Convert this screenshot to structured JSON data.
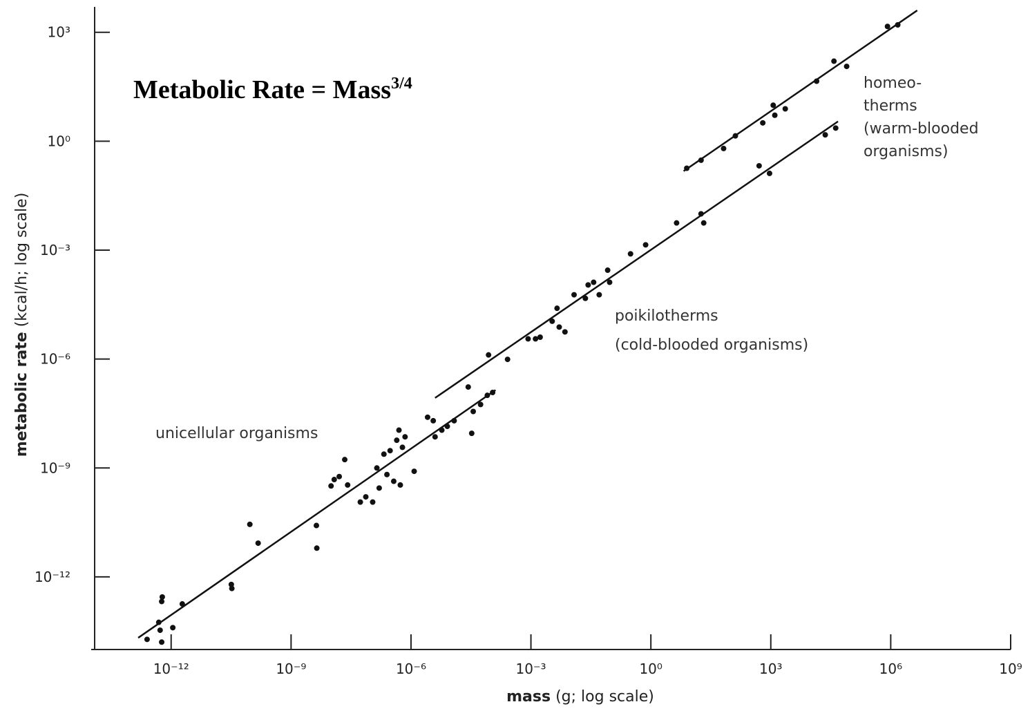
{
  "chart_data": {
    "type": "scatter",
    "title": "Metabolic Rate = Mass",
    "title_exponent": "3/4",
    "xlabel": "mass",
    "xlabel_unit": "(g; log scale)",
    "ylabel": "metabolic rate",
    "ylabel_unit": "(kcal/h; log scale)",
    "xscale": "log",
    "yscale": "log",
    "xlim": [
      1e-14,
      1000000000.0
    ],
    "ylim": [
      1e-14,
      5000.0
    ],
    "xticks": [
      {
        "value": 1e-12,
        "label": "10⁻¹²"
      },
      {
        "value": 1e-09,
        "label": "10⁻⁹"
      },
      {
        "value": 1e-06,
        "label": "10⁻⁶"
      },
      {
        "value": 0.001,
        "label": "10⁻³"
      },
      {
        "value": 1,
        "label": "10⁰"
      },
      {
        "value": 1000.0,
        "label": "10³"
      },
      {
        "value": 1000000.0,
        "label": "10⁶"
      },
      {
        "value": 1000000000.0,
        "label": "10⁹"
      }
    ],
    "yticks": [
      {
        "value": 1e-12,
        "label": "10⁻¹²"
      },
      {
        "value": 1e-09,
        "label": "10⁻⁹"
      },
      {
        "value": 1e-06,
        "label": "10⁻⁶"
      },
      {
        "value": 0.001,
        "label": "10⁻³"
      },
      {
        "value": 1,
        "label": "10⁰"
      },
      {
        "value": 1000.0,
        "label": "10³"
      }
    ],
    "series": [
      {
        "color": "#111111",
        "x": [
          2.5e-13,
          5.8e-13,
          5.3e-13,
          4.9e-13,
          5.8e-13,
          6e-13,
          1.1e-12,
          1.9e-12,
          3.2e-11,
          3.3e-11,
          9.3e-11,
          1.5e-10,
          4.3e-09,
          4.4e-09,
          1e-08,
          1.2e-08,
          1.6e-08,
          2.2e-08,
          2.6e-08,
          5.4e-08,
          7.4e-08,
          1.1e-07,
          1.4e-07,
          1.6e-07,
          2.1e-07,
          2.5e-07,
          3e-07,
          3.7e-07,
          4.4e-07,
          5e-07,
          6.1e-07,
          5.4e-07,
          7.1e-07,
          1.2e-06,
          2.6e-06,
          3.6e-06,
          4e-06,
          5.9e-06,
          8.1e-06,
          1.2e-05,
          2.7e-05,
          3.3e-05,
          3.6e-05,
          5.5e-05,
          8.1e-05,
          0.00011,
          8.7e-05,
          0.00026,
          0.00085,
          0.0013,
          0.0017,
          0.0034,
          0.0045,
          0.0051,
          0.0071,
          0.012,
          0.023,
          0.027,
          0.037,
          0.051,
          0.083,
          0.093,
          0.31,
          0.74,
          4.4,
          18,
          21,
          510,
          930,
          23000.0,
          42000.0,
          7.9,
          18,
          66,
          130,
          630,
          1150,
          1260,
          2300,
          14000.0,
          38000.0,
          79000.0,
          830000.0,
          1500000.0
        ],
        "values": [
          1.9e-14,
          1.6e-14,
          3.4e-14,
          5.6e-14,
          2.1e-13,
          2.8e-13,
          4e-14,
          1.8e-13,
          6.2e-13,
          4.8e-13,
          2.8e-11,
          8.5e-12,
          2.6e-11,
          6.2e-12,
          3.2e-10,
          4.8e-10,
          5.8e-10,
          1.7e-09,
          3.4e-10,
          1.15e-10,
          1.6e-10,
          1.15e-10,
          1e-09,
          2.8e-10,
          2.4e-09,
          6.6e-10,
          3e-09,
          4.3e-10,
          5.8e-09,
          1.1e-08,
          3.7e-09,
          3.4e-10,
          7.2e-09,
          8.1e-10,
          2.5e-08,
          2e-08,
          7.2e-09,
          1.1e-08,
          1.4e-08,
          2e-08,
          1.7e-07,
          9e-09,
          3.6e-08,
          5.6e-08,
          1e-07,
          1.2e-07,
          1.3e-06,
          9.8e-07,
          3.6e-06,
          3.6e-06,
          4e-06,
          1.1e-05,
          2.5e-05,
          7.6e-06,
          5.6e-06,
          5.9e-05,
          4.7e-05,
          0.00011,
          0.00013,
          5.9e-05,
          0.00028,
          0.00013,
          0.00079,
          0.0014,
          0.0056,
          0.01,
          0.0056,
          0.21,
          0.13,
          1.5,
          2.3,
          0.18,
          0.3,
          0.63,
          1.4,
          3.2,
          9.8,
          5.2,
          7.8,
          45,
          160,
          115,
          1450,
          1600
        ]
      }
    ],
    "fit_lines": [
      {
        "color": "#111111",
        "x": [
          1.5e-13,
          0.00013
        ],
        "values": [
          2.1e-14,
          1.4e-07
        ]
      },
      {
        "color": "#111111",
        "x": [
          4e-06,
          48000.0
        ],
        "values": [
          8.5e-08,
          3.5
        ]
      },
      {
        "color": "#111111",
        "x": [
          6.6,
          4600000.0
        ],
        "values": [
          0.15,
          4000
        ]
      }
    ],
    "annotations": [
      [
        "unicellular organisms"
      ],
      [
        "poikilotherms",
        "(cold-blooded organisms)"
      ],
      [
        "homeo-",
        "therms",
        "(warm-blooded",
        "organisms)"
      ]
    ]
  }
}
